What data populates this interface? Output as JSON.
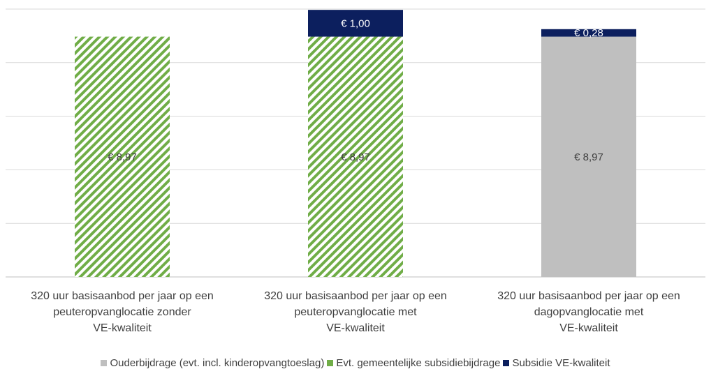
{
  "chart_data": {
    "type": "bar",
    "stacked": true,
    "categories": [
      "320 uur basisaanbod per jaar op een\npeuteropvanglocatie zonder\nVE-kwaliteit",
      "320 uur basisaanbod per jaar op een\npeuteropvanglocatie met\nVE-kwaliteit",
      "320 uur basisaanbod per jaar op een\ndagopvanglocatie met\nVE-kwaliteit"
    ],
    "series": [
      {
        "name": "Ouderbijdrage (evt. incl. kinderopvangtoeslag)",
        "color": "#bfbfbf",
        "pattern": "solid",
        "values": [
          0,
          0,
          8.97
        ],
        "labels": [
          "",
          "",
          "€ 8,97"
        ]
      },
      {
        "name": "Evt. gemeentelijke subsidiebijdrage",
        "color": "#70ad47",
        "pattern": "diagonal-hatch",
        "values": [
          8.97,
          8.97,
          0
        ],
        "labels": [
          "€ 8,97",
          "€ 8,97",
          ""
        ]
      },
      {
        "name": "Subsidie VE-kwaliteit",
        "color": "#0c1f5e",
        "pattern": "solid",
        "values": [
          0,
          1.0,
          0.28
        ],
        "labels": [
          "",
          "€ 1,00",
          "€ 0,28"
        ]
      }
    ],
    "ylim": [
      0,
      10
    ],
    "grid": true,
    "legend_position": "bottom",
    "title": "",
    "xlabel": "",
    "ylabel": ""
  }
}
